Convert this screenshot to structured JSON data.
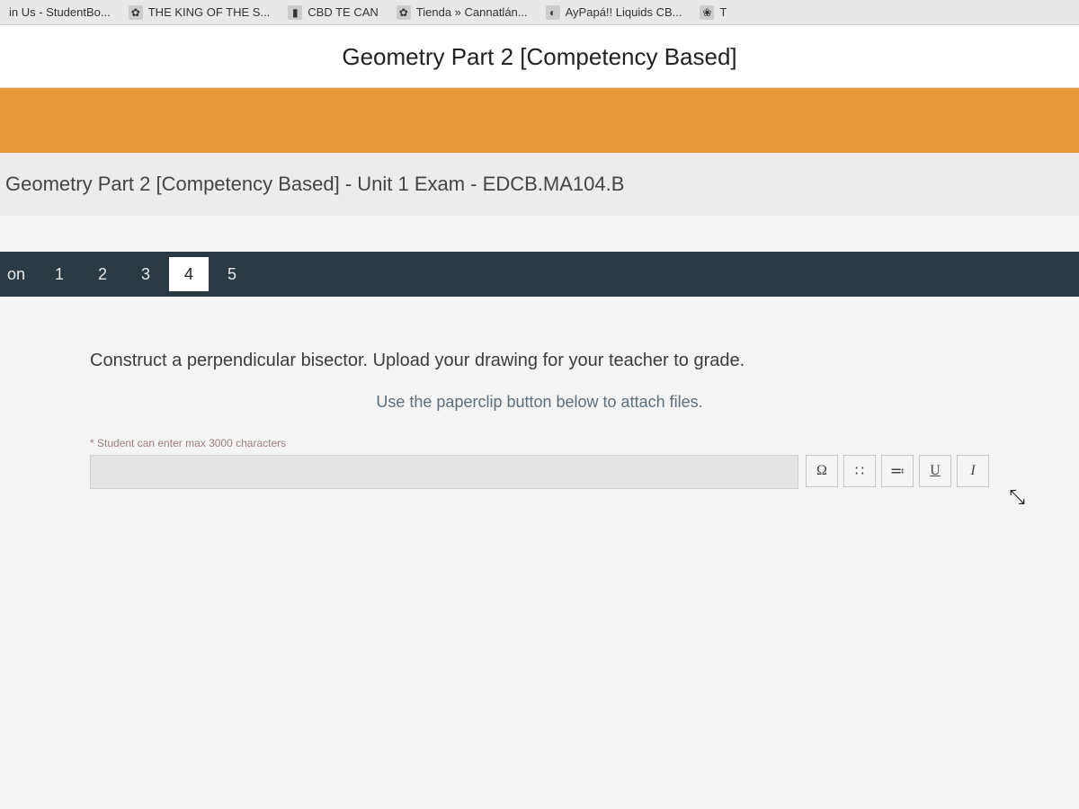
{
  "bookmarks": [
    {
      "label": "in Us - StudentBo...",
      "icon": ""
    },
    {
      "label": "THE KING OF THE S...",
      "icon": "✿"
    },
    {
      "label": "CBD TE CAN",
      "icon": "▮"
    },
    {
      "label": "Tienda » Cannatlán...",
      "icon": "✿"
    },
    {
      "label": "AyPapá!! Liquids CB...",
      "icon": "◐"
    },
    {
      "label": "T",
      "icon": "❀"
    }
  ],
  "course_title": "Geometry Part 2 [Competency Based]",
  "exam_title": "Geometry Part 2 [Competency Based] - Unit 1 Exam - EDCB.MA104.B",
  "question_nav": {
    "label": "on",
    "items": [
      "1",
      "2",
      "3",
      "4",
      "5"
    ],
    "active_index": 3
  },
  "question": {
    "prompt": "Construct a perpendicular bisector. Upload your drawing for your teacher to grade.",
    "attach_hint": "Use the paperclip button below to attach files.",
    "char_limit_note": "* Student can enter max 3000 characters"
  },
  "toolbar": {
    "omega": "Ω",
    "super": "∷",
    "sub": "≕",
    "underline": "U",
    "italic": "I"
  },
  "colors": {
    "orange_band": "#e89a3c",
    "nav_bg": "#2b3a42",
    "attach_hint": "#5c6f7c"
  }
}
